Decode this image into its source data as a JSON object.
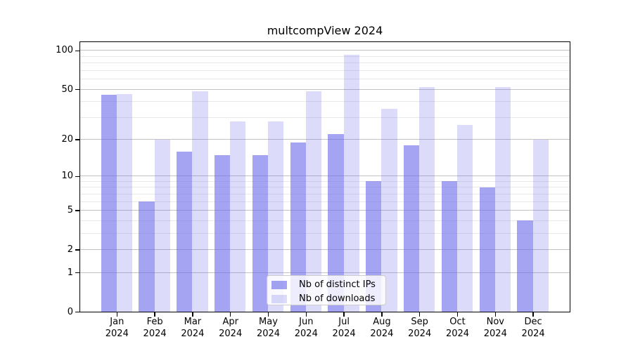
{
  "figure": {
    "title": "multcompView 2024",
    "background": "#ffffff"
  },
  "chart_data": {
    "type": "bar",
    "title": "multcompView 2024",
    "categories": [
      "Jan",
      "Feb",
      "Mar",
      "Apr",
      "May",
      "Jun",
      "Jul",
      "Aug",
      "Sep",
      "Oct",
      "Nov",
      "Dec"
    ],
    "x_year_label": "2024",
    "series": [
      {
        "name": "Nb of distinct IPs",
        "color_rgba": "rgba(103,103,233,0.60)",
        "color_hex_on_white": "#a4a4f1",
        "values": [
          45,
          6,
          16,
          15,
          15,
          19,
          22,
          9,
          18,
          9,
          8,
          4
        ]
      },
      {
        "name": "Nb of downloads",
        "color_rgba": "rgba(103,103,233,0.23)",
        "color_hex_on_white": "#dcdcf9",
        "values": [
          46,
          20,
          48,
          28,
          28,
          48,
          93,
          35,
          52,
          26,
          52,
          20
        ]
      }
    ],
    "y_axis": {
      "scale": "log1p",
      "tick_values": [
        0,
        1,
        2,
        5,
        10,
        20,
        50,
        100
      ],
      "tick_labels": [
        "0",
        "1",
        "2",
        "5",
        "10",
        "20",
        "50",
        "100"
      ],
      "minor_gridline_values": [
        3,
        4,
        6,
        7,
        8,
        9,
        30,
        40,
        60,
        70,
        80,
        90
      ],
      "range_top": 117
    },
    "grid": true,
    "legend_position": "lower-center"
  },
  "colors": {
    "grid_major": "#c2c2c2",
    "grid_minor": "#e9e9e9",
    "axis_box": "#000000",
    "legend_border": "#cccccc"
  }
}
